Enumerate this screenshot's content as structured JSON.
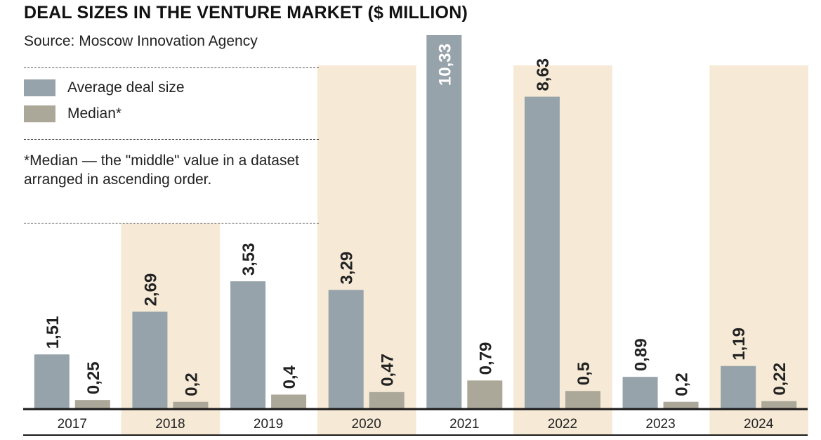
{
  "header": {
    "title": "DEAL SIZES IN THE VENTURE MARKET ($ MILLION)",
    "source": "Source: Moscow Innovation Agency"
  },
  "legend": {
    "items": [
      {
        "label": "Average deal size",
        "color": "#97a3aa"
      },
      {
        "label": "Median*",
        "color": "#aca899"
      }
    ]
  },
  "footnote": "*Median — the \"middle\" value in a dataset arranged in ascending order.",
  "colors": {
    "average": "#97a3aa",
    "median": "#aca899",
    "highlight_band": "#f6ead7",
    "axis": "#1a1a1a"
  },
  "chart_data": {
    "type": "bar",
    "title": "DEAL SIZES IN THE VENTURE MARKET ($ MILLION)",
    "subtitle": "Source: Moscow Innovation Agency",
    "categories": [
      "2017",
      "2018",
      "2019",
      "2020",
      "2021",
      "2022",
      "2023",
      "2024"
    ],
    "series": [
      {
        "name": "Average deal size",
        "values": [
          1.51,
          2.69,
          3.53,
          3.29,
          10.33,
          8.63,
          0.89,
          1.19
        ],
        "labels": [
          "1,51",
          "2,69",
          "3,53",
          "3,29",
          "10,33",
          "8,63",
          "0,89",
          "1,19"
        ]
      },
      {
        "name": "Median*",
        "values": [
          0.25,
          0.2,
          0.4,
          0.47,
          0.79,
          0.5,
          0.2,
          0.22
        ],
        "labels": [
          "0,25",
          "0,2",
          "0,4",
          "0,47",
          "0,79",
          "0,5",
          "0,2",
          "0,22"
        ]
      }
    ],
    "highlighted_categories": [
      "2018",
      "2020",
      "2022",
      "2024"
    ],
    "grid": false,
    "legend_position": "top-left"
  }
}
